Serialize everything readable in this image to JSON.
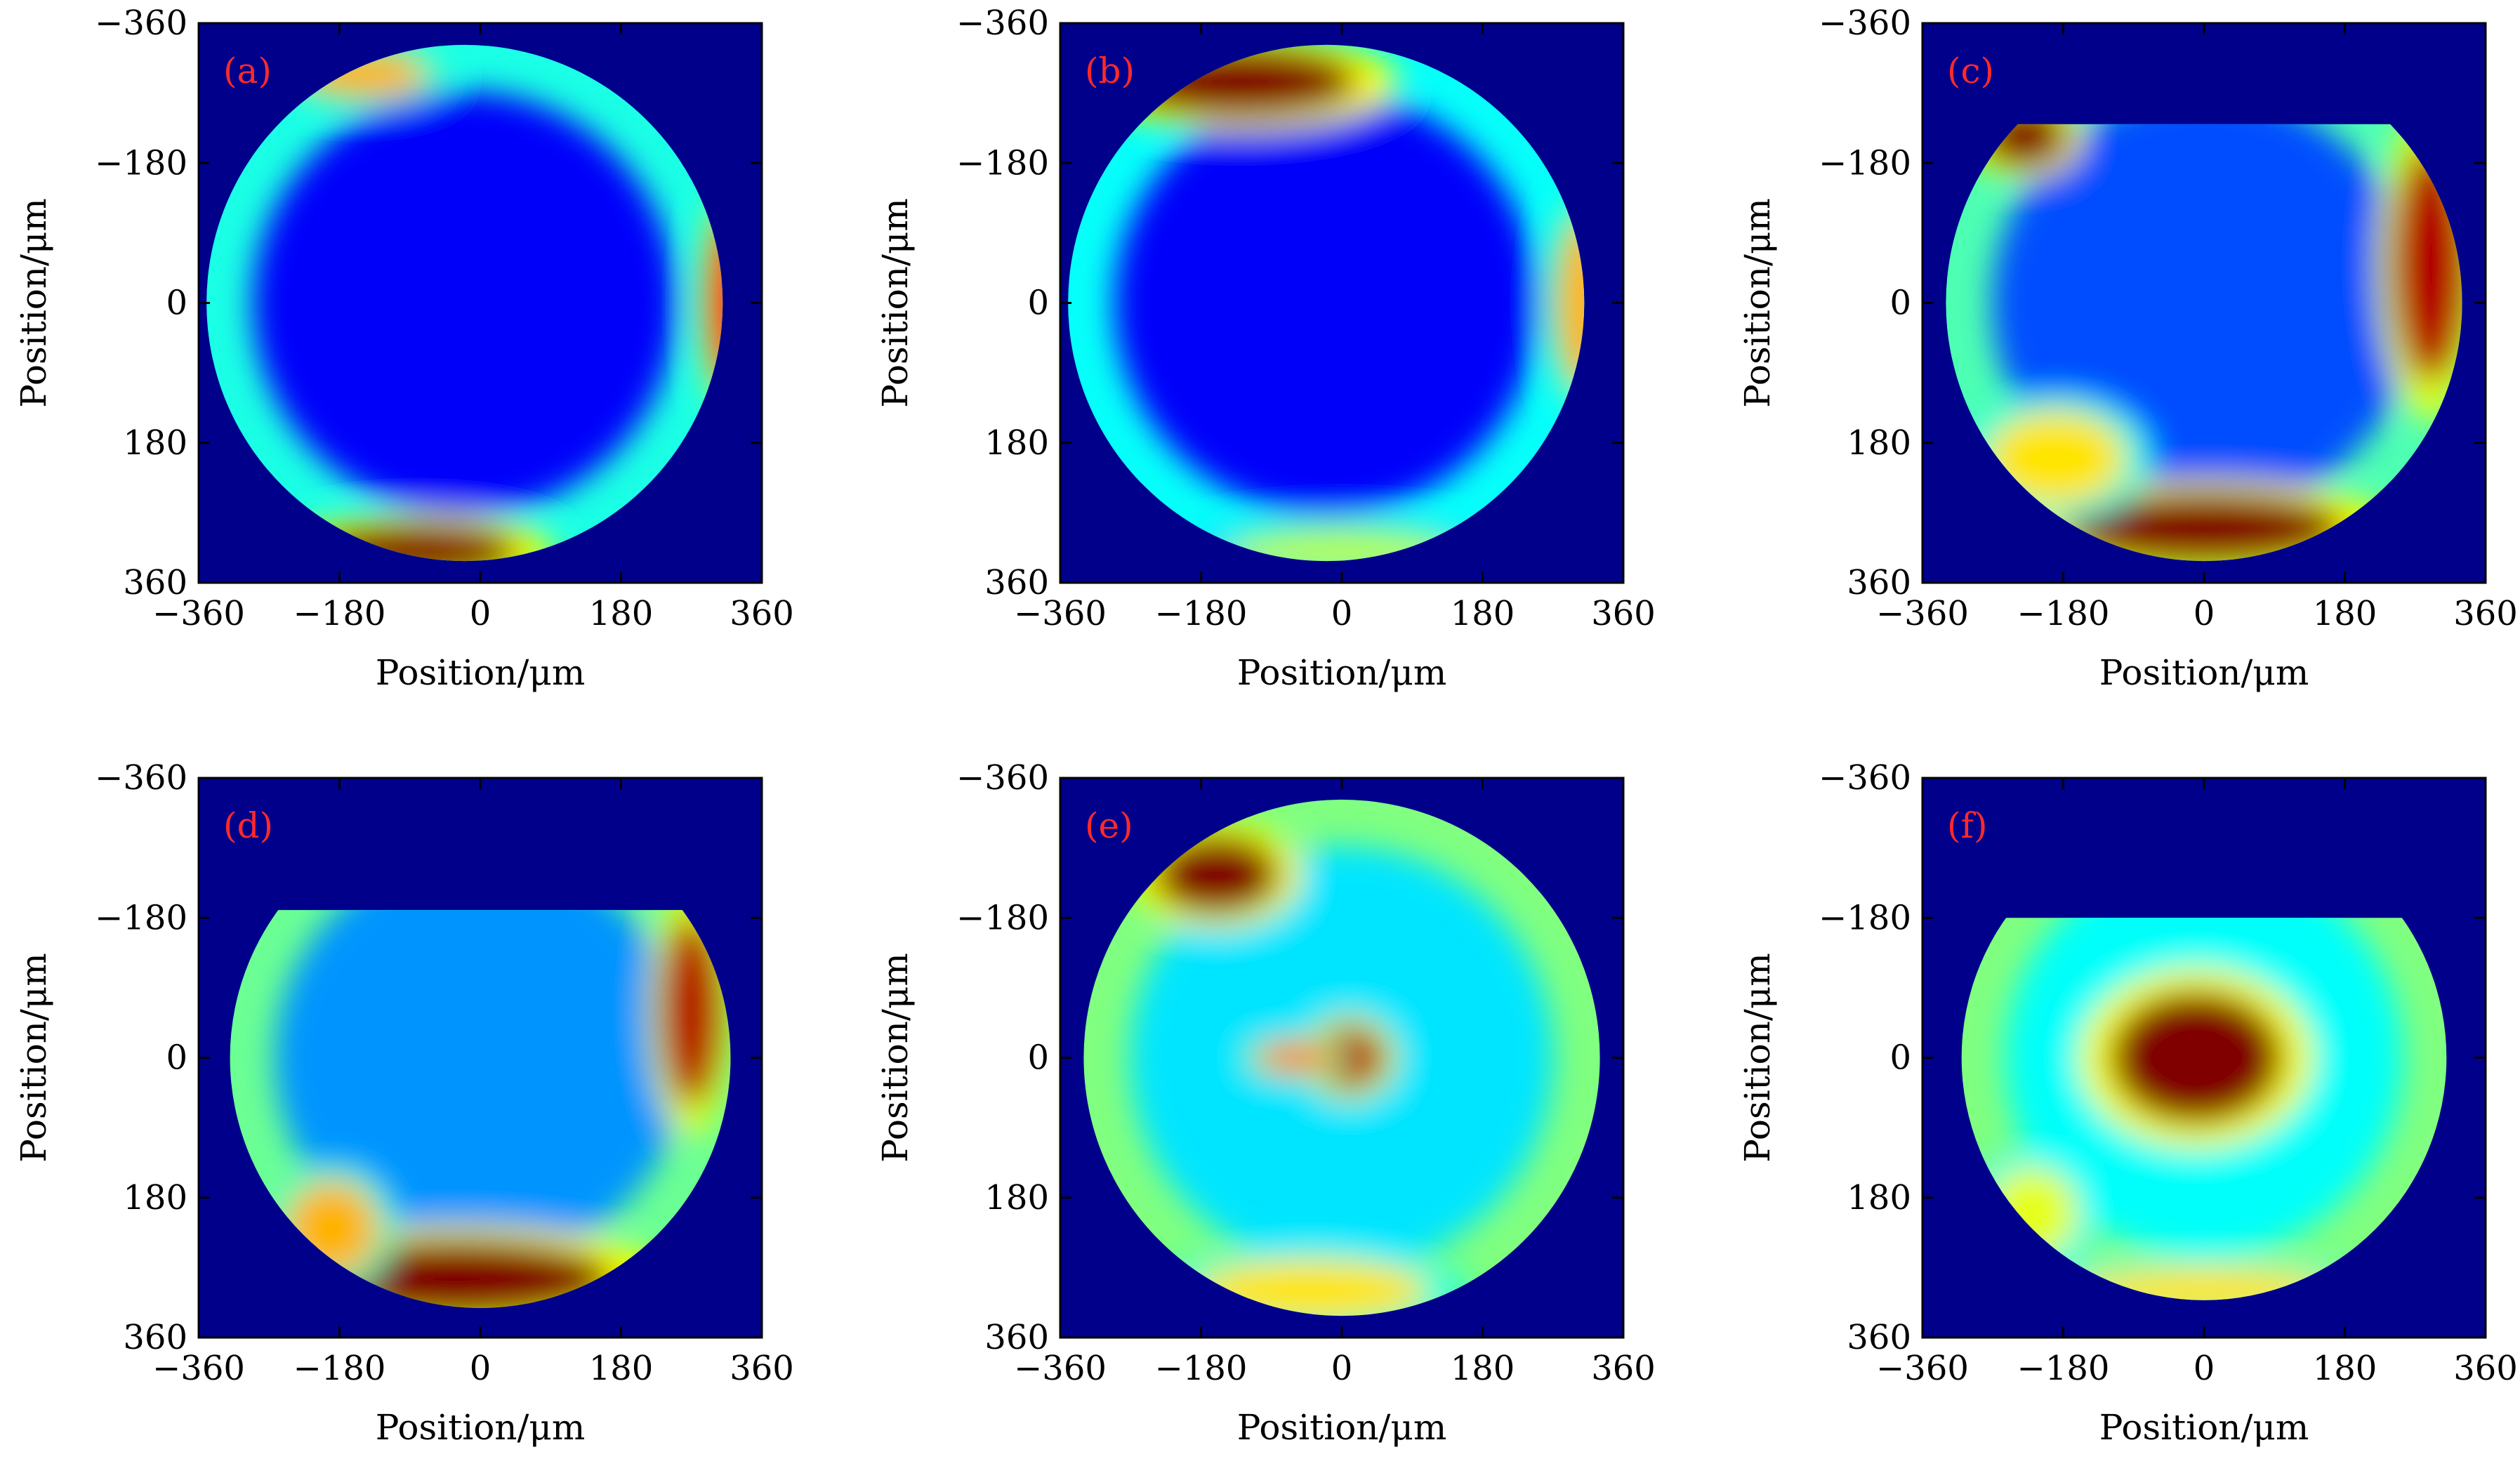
{
  "chart_data": {
    "type": "heatmap",
    "colormap": "jet",
    "axes_scale": "linear",
    "x_axis_direction": "increasing-right",
    "y_axis_direction": "increasing-down",
    "xlabel": "Position/μm",
    "ylabel": "Position/μm",
    "xlim": [
      -360,
      360
    ],
    "ylim": [
      -360,
      360
    ],
    "xticks": [
      -360,
      -180,
      0,
      180,
      360
    ],
    "yticks": [
      -360,
      -180,
      0,
      180,
      360
    ],
    "xtick_labels": [
      "−360",
      "−180",
      "0",
      "180",
      "360"
    ],
    "ytick_labels": [
      "−360",
      "−180",
      "0",
      "180",
      "360"
    ],
    "background_color": "#00008b",
    "panels": [
      {
        "label": "(a)",
        "shape": "circle",
        "center": [
          -20,
          0
        ],
        "radius": 330,
        "cut_top_y": null,
        "interior_level": 0.12,
        "ring_level": 0.4,
        "hotspots": [
          {
            "x": -80,
            "y": 320,
            "rx": 130,
            "ry": 35,
            "level": 1.0
          },
          {
            "x": 320,
            "y": 0,
            "rx": 30,
            "ry": 110,
            "level": 0.85
          },
          {
            "x": -150,
            "y": -295,
            "rx": 80,
            "ry": 30,
            "level": 0.7
          }
        ]
      },
      {
        "label": "(b)",
        "shape": "circle",
        "center": [
          -20,
          0
        ],
        "radius": 330,
        "cut_top_y": null,
        "interior_level": 0.12,
        "ring_level": 0.38,
        "hotspots": [
          {
            "x": -130,
            "y": -285,
            "rx": 150,
            "ry": 45,
            "level": 1.0
          },
          {
            "x": 310,
            "y": 0,
            "rx": 35,
            "ry": 110,
            "level": 0.7
          },
          {
            "x": 0,
            "y": 320,
            "rx": 150,
            "ry": 30,
            "level": 0.55
          }
        ]
      },
      {
        "label": "(c)",
        "shape": "cut-circle",
        "center": [
          0,
          0
        ],
        "radius": 330,
        "cut_top_y": -230,
        "interior_level": 0.2,
        "ring_level": 0.45,
        "hotspots": [
          {
            "x": -230,
            "y": -215,
            "rx": 55,
            "ry": 40,
            "level": 1.0
          },
          {
            "x": 290,
            "y": -50,
            "rx": 50,
            "ry": 150,
            "level": 0.95
          },
          {
            "x": 0,
            "y": 290,
            "rx": 180,
            "ry": 45,
            "level": 1.0
          },
          {
            "x": -190,
            "y": 200,
            "rx": 90,
            "ry": 60,
            "level": 0.65
          }
        ]
      },
      {
        "label": "(d)",
        "shape": "cut-circle",
        "center": [
          0,
          0
        ],
        "radius": 320,
        "cut_top_y": -190,
        "interior_level": 0.27,
        "ring_level": 0.48,
        "hotspots": [
          {
            "x": -30,
            "y": 285,
            "rx": 200,
            "ry": 50,
            "level": 1.0
          },
          {
            "x": 270,
            "y": -60,
            "rx": 40,
            "ry": 120,
            "level": 0.95
          },
          {
            "x": -190,
            "y": 220,
            "rx": 60,
            "ry": 60,
            "level": 0.7
          }
        ]
      },
      {
        "label": "(e)",
        "shape": "circle",
        "center": [
          0,
          0
        ],
        "radius": 330,
        "cut_top_y": null,
        "interior_level": 0.35,
        "ring_level": 0.5,
        "hotspots": [
          {
            "x": -160,
            "y": -235,
            "rx": 80,
            "ry": 50,
            "level": 1.0
          },
          {
            "x": 10,
            "y": 0,
            "rx": 45,
            "ry": 40,
            "level": 0.95
          },
          {
            "x": -60,
            "y": 0,
            "rx": 50,
            "ry": 20,
            "level": 0.75
          },
          {
            "x": -40,
            "y": 300,
            "rx": 150,
            "ry": 40,
            "level": 0.65
          }
        ]
      },
      {
        "label": "(f)",
        "shape": "cut-circle",
        "center": [
          0,
          0
        ],
        "radius": 310,
        "cut_top_y": -180,
        "interior_level": 0.38,
        "ring_level": 0.5,
        "hotspots": [
          {
            "x": -10,
            "y": 0,
            "rx": 110,
            "ry": 85,
            "level": 1.0
          },
          {
            "x": 0,
            "y": 300,
            "rx": 170,
            "ry": 30,
            "level": 0.65
          },
          {
            "x": -220,
            "y": 200,
            "rx": 60,
            "ry": 60,
            "level": 0.6
          }
        ]
      }
    ]
  }
}
